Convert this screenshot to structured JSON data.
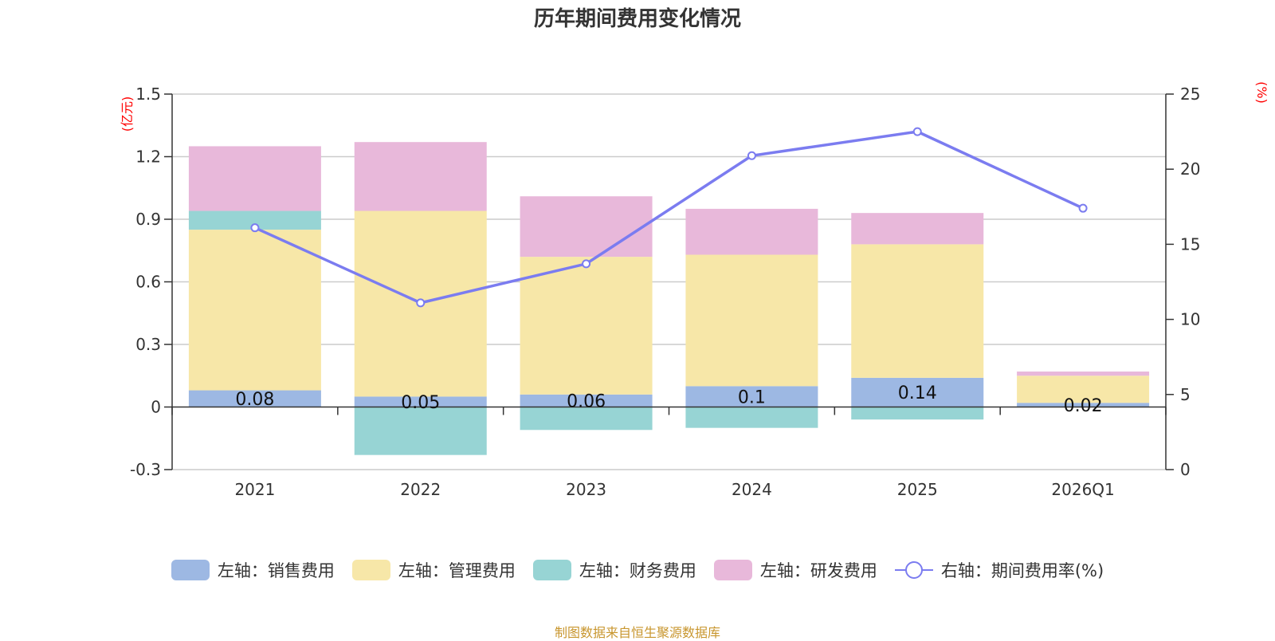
{
  "chart_data": {
    "type": "bar",
    "title": "历年期间费用变化情况",
    "categories": [
      "2021",
      "2022",
      "2023",
      "2024",
      "2025",
      "2026Q1"
    ],
    "left_axis": {
      "unit": "(亿元)",
      "min": -0.3,
      "max": 1.5,
      "ticks": [
        "1.5",
        "1.2",
        "0.9",
        "0.6",
        "0.3",
        "0",
        "-0.3"
      ]
    },
    "right_axis": {
      "unit": "(%)",
      "min": 0,
      "max": 25,
      "ticks": [
        "25",
        "20",
        "15",
        "10",
        "5",
        "0"
      ]
    },
    "series": [
      {
        "name": "销售费用",
        "legend": "左轴：销售费用",
        "axis": "left",
        "color": "#9db8e3",
        "values": [
          0.08,
          0.05,
          0.06,
          0.1,
          0.14,
          0.02
        ],
        "labels": [
          "0.08",
          "0.05",
          "0.06",
          "0.1",
          "0.14",
          "0.02"
        ]
      },
      {
        "name": "管理费用",
        "legend": "左轴：管理费用",
        "axis": "left",
        "color": "#f7e7a8",
        "values": [
          0.77,
          0.89,
          0.66,
          0.63,
          0.64,
          0.13
        ]
      },
      {
        "name": "财务费用",
        "legend": "左轴：财务费用",
        "axis": "left",
        "color": "#97d4d4",
        "values": [
          0.09,
          -0.23,
          -0.11,
          -0.1,
          -0.06,
          0.0
        ]
      },
      {
        "name": "研发费用",
        "legend": "左轴：研发费用",
        "axis": "left",
        "color": "#e8b8da",
        "values": [
          0.31,
          0.33,
          0.29,
          0.22,
          0.15,
          0.02
        ]
      },
      {
        "name": "期间费用率(%)",
        "legend": "右轴：期间费用率(%)",
        "axis": "right",
        "type": "line",
        "color": "#7b7cf0",
        "values": [
          16.1,
          11.1,
          13.7,
          20.9,
          22.5,
          17.4
        ]
      }
    ],
    "grid": true,
    "legend_position": "bottom-center"
  },
  "footer": "制图数据来自恒生聚源数据库"
}
